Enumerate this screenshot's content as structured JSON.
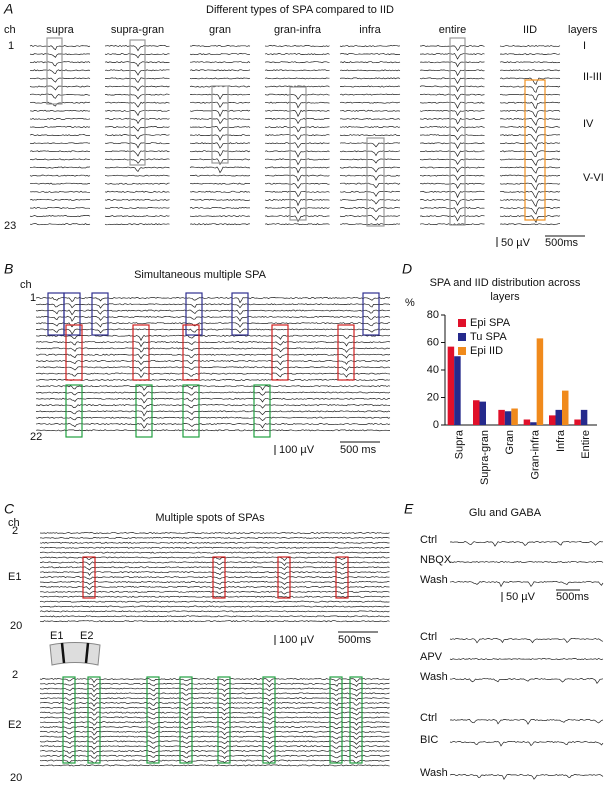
{
  "panel_a": {
    "label": "A",
    "title": "Different types of SPA compared to IID",
    "columns": [
      "supra",
      "supra-gran",
      "gran",
      "gran-infra",
      "infra",
      "entire",
      "IID"
    ],
    "ch_label": "ch",
    "ch_first": "1",
    "ch_last": "23",
    "layers_title": "layers",
    "layers": [
      "I",
      "II-III",
      "IV",
      "V-VI"
    ],
    "scale_v": "50 µV",
    "scale_t": "500ms"
  },
  "panel_b": {
    "label": "B",
    "title": "Simultaneous multiple SPA",
    "ch_label": "ch",
    "ch_first": "1",
    "ch_last": "22",
    "scale_v": "100 µV",
    "scale_t": "500 ms"
  },
  "panel_c": {
    "label": "C",
    "title": "Multiple spots of SPAs",
    "ch_label": "ch",
    "e1_first": "2",
    "e1_label": "E1",
    "e1_last": "20",
    "electrodes": [
      "E1",
      "E2"
    ],
    "e2_first": "2",
    "e2_label": "E2",
    "e2_last": "20",
    "scale_v": "100 µV",
    "scale_t": "500ms"
  },
  "panel_e": {
    "label": "E",
    "title": "Glu and GABA",
    "groups": [
      [
        "Ctrl",
        "NBQX",
        "Wash"
      ],
      [
        "Ctrl",
        "APV",
        "Wash"
      ],
      [
        "Ctrl",
        "BIC",
        "Wash"
      ]
    ],
    "scale_v": "50 µV",
    "scale_t": "500ms"
  },
  "chart_data": {
    "type": "bar",
    "label": "D",
    "title": "SPA and IID distribution across layers",
    "ylabel": "%",
    "categories": [
      "Supra",
      "Supra-gran",
      "Gran",
      "Gran-infra",
      "Infra",
      "Entire"
    ],
    "series": [
      {
        "name": "Epi SPA",
        "color": "#e0102a",
        "values": [
          57,
          18,
          11,
          4,
          7,
          4
        ]
      },
      {
        "name": "Tu SPA",
        "color": "#252a8c",
        "values": [
          50,
          17,
          10,
          2,
          11,
          11
        ]
      },
      {
        "name": "Epi IID",
        "color": "#f08a1c",
        "values": [
          0,
          0,
          12,
          63,
          25,
          0
        ]
      }
    ],
    "ylim": [
      0,
      80
    ],
    "yticks": [
      0,
      20,
      40,
      60,
      80
    ],
    "legend": "upper right"
  }
}
